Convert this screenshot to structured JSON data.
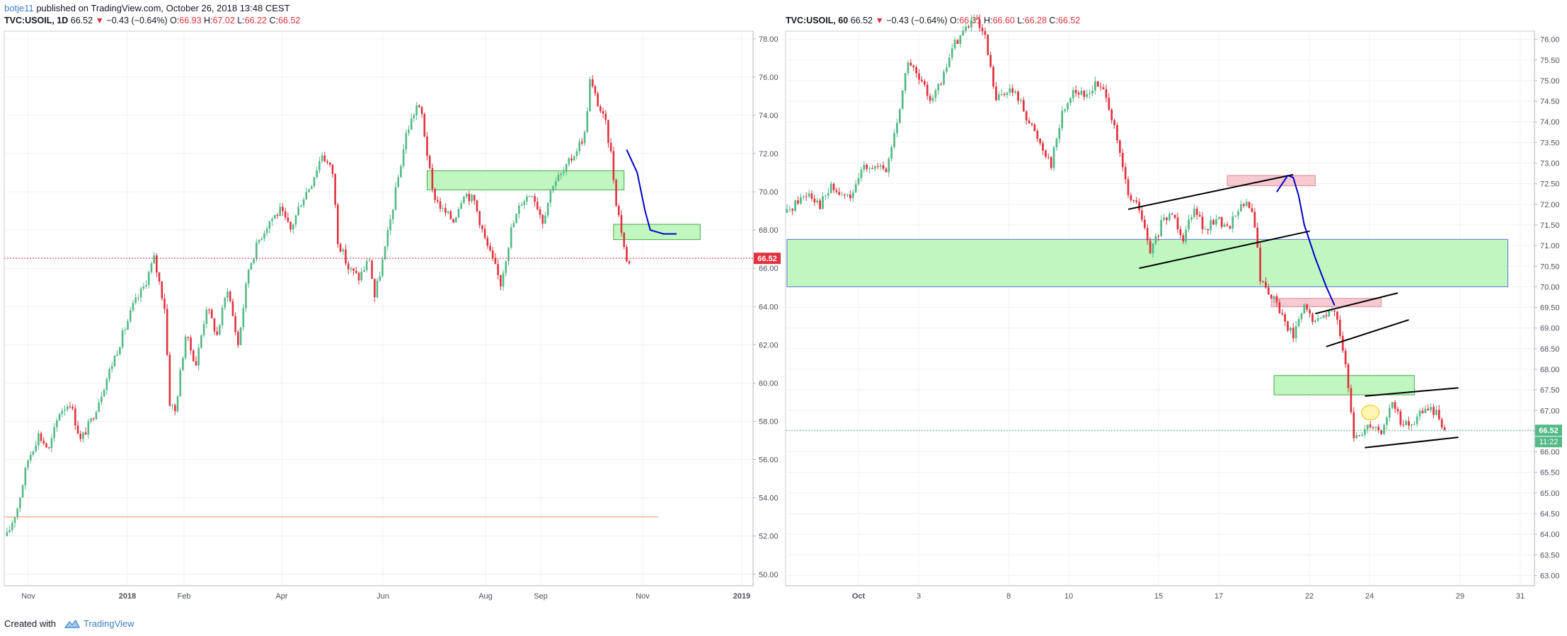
{
  "header": {
    "author": "botje11",
    "published_text": "published on TradingView.com, October 26, 2018 13:48 CEST"
  },
  "footer": {
    "created_with": "Created with",
    "brand": "TradingView"
  },
  "colors": {
    "up": "#26a69a",
    "up_candle": "#53b987",
    "down": "#e0323e",
    "zone_green": "#b9f5b9",
    "zone_pink": "#f6c3cb",
    "projection": "#0000cc",
    "grid": "#eef0f3",
    "price_label_left": "#e0323e",
    "price_label_right": "#53b987",
    "support_line": "#f5a070"
  },
  "chart_data": [
    {
      "type": "candlestick",
      "symbol": "TVC:USOIL",
      "interval": "1D",
      "legend": {
        "symbol": "TVC:USOIL, 1D",
        "last": "66.52",
        "change": "−0.43 (−0.64%)",
        "open_label": "O:",
        "open": "66.93",
        "high_label": "H:",
        "high": "67.02",
        "low_label": "L:",
        "low": "66.22",
        "close_label": "C:",
        "close": "66.52"
      },
      "y_ticks": [
        "50.00",
        "52.00",
        "54.00",
        "56.00",
        "58.00",
        "60.00",
        "62.00",
        "64.00",
        "66.00",
        "68.00",
        "70.00",
        "72.00",
        "74.00",
        "76.00",
        "78.00"
      ],
      "y_range": [
        49.4,
        78.4
      ],
      "x_ticks": [
        "Nov",
        "2018",
        "Feb",
        "Apr",
        "Jun",
        "Aug",
        "Sep",
        "Nov",
        "2019"
      ],
      "current_price_label": "66.52",
      "current_price": 66.52,
      "price_path": [
        [
          0,
          52.0
        ],
        [
          4,
          53.5
        ],
        [
          8,
          56.0
        ],
        [
          12,
          57.3
        ],
        [
          16,
          56.5
        ],
        [
          20,
          58.5
        ],
        [
          24,
          59.0
        ],
        [
          28,
          57.0
        ],
        [
          32,
          58.0
        ],
        [
          36,
          59.5
        ],
        [
          40,
          61.0
        ],
        [
          44,
          62.5
        ],
        [
          48,
          64.0
        ],
        [
          52,
          65.0
        ],
        [
          56,
          66.5
        ],
        [
          60,
          64.0
        ],
        [
          62,
          59.0
        ],
        [
          64,
          58.5
        ],
        [
          68,
          62.5
        ],
        [
          72,
          61.0
        ],
        [
          76,
          64.0
        ],
        [
          80,
          62.5
        ],
        [
          84,
          65.0
        ],
        [
          88,
          62.0
        ],
        [
          92,
          66.0
        ],
        [
          96,
          67.5
        ],
        [
          100,
          68.5
        ],
        [
          104,
          69.0
        ],
        [
          108,
          68.0
        ],
        [
          112,
          69.5
        ],
        [
          116,
          70.5
        ],
        [
          120,
          72.0
        ],
        [
          124,
          71.0
        ],
        [
          126,
          67.5
        ],
        [
          130,
          66.0
        ],
        [
          134,
          65.5
        ],
        [
          138,
          66.5
        ],
        [
          140,
          64.5
        ],
        [
          144,
          67.0
        ],
        [
          148,
          70.0
        ],
        [
          152,
          73.0
        ],
        [
          156,
          74.5
        ],
        [
          158,
          74.0
        ],
        [
          162,
          70.0
        ],
        [
          166,
          69.0
        ],
        [
          170,
          68.5
        ],
        [
          174,
          70.0
        ],
        [
          178,
          69.5
        ],
        [
          182,
          67.5
        ],
        [
          186,
          66.0
        ],
        [
          188,
          65.2
        ],
        [
          192,
          68.0
        ],
        [
          196,
          69.5
        ],
        [
          200,
          70.0
        ],
        [
          204,
          68.5
        ],
        [
          208,
          70.5
        ],
        [
          212,
          71.0
        ],
        [
          216,
          72.0
        ],
        [
          220,
          73.0
        ],
        [
          222,
          75.8
        ],
        [
          224,
          75.0
        ],
        [
          228,
          73.5
        ],
        [
          230,
          72.0
        ],
        [
          232,
          69.5
        ],
        [
          234,
          68.0
        ],
        [
          236,
          66.3
        ],
        [
          238,
          66.52
        ]
      ],
      "rectangles": [
        {
          "y_top": 71.1,
          "y_bottom": 70.1,
          "x_start_bar": 160,
          "x_end_bar": 235
        },
        {
          "y_top": 68.3,
          "y_bottom": 67.5,
          "x_start_bar": 231,
          "x_end_bar": 264
        }
      ],
      "horizontal_line": {
        "y": 53.0
      },
      "projection_path": [
        [
          236,
          72.2
        ],
        [
          240,
          71.0
        ],
        [
          243,
          69.0
        ],
        [
          245,
          68.0
        ],
        [
          250,
          67.8
        ],
        [
          255,
          67.8
        ]
      ]
    },
    {
      "type": "candlestick",
      "symbol": "TVC:USOIL",
      "interval": "60",
      "legend": {
        "symbol": "TVC:USOIL, 60",
        "last": "66.52",
        "change": "−0.43 (−0.64%)",
        "open_label": "O:",
        "open": "66.31",
        "high_label": "H:",
        "high": "66.60",
        "low_label": "L:",
        "low": "66.28",
        "close_label": "C:",
        "close": "66.52"
      },
      "y_ticks": [
        "63.00",
        "63.50",
        "64.00",
        "64.50",
        "65.00",
        "65.50",
        "66.00",
        "66.50",
        "67.00",
        "67.50",
        "68.00",
        "68.50",
        "69.00",
        "69.50",
        "70.00",
        "70.50",
        "71.00",
        "71.50",
        "72.00",
        "72.50",
        "73.00",
        "73.50",
        "74.00",
        "74.50",
        "75.00",
        "75.50",
        "76.00"
      ],
      "y_range": [
        62.75,
        76.2
      ],
      "x_ticks": [
        "Oct",
        "3",
        "8",
        "10",
        "15",
        "17",
        "22",
        "24",
        "29",
        "31"
      ],
      "current_price_label": "66.52",
      "countdown_label": "11:22",
      "current_price": 66.52,
      "price_path": [
        [
          0,
          71.8
        ],
        [
          4,
          72.1
        ],
        [
          8,
          72.3
        ],
        [
          12,
          72.0
        ],
        [
          16,
          72.4
        ],
        [
          20,
          72.2
        ],
        [
          24,
          72.2
        ],
        [
          28,
          73.0
        ],
        [
          32,
          72.9
        ],
        [
          36,
          72.8
        ],
        [
          40,
          74.0
        ],
        [
          44,
          75.5
        ],
        [
          48,
          75.0
        ],
        [
          52,
          74.6
        ],
        [
          56,
          74.9
        ],
        [
          60,
          75.8
        ],
        [
          64,
          76.2
        ],
        [
          68,
          76.5
        ],
        [
          72,
          76.0
        ],
        [
          76,
          74.5
        ],
        [
          80,
          74.8
        ],
        [
          84,
          74.6
        ],
        [
          88,
          74.0
        ],
        [
          92,
          73.5
        ],
        [
          96,
          73.0
        ],
        [
          100,
          74.2
        ],
        [
          104,
          74.8
        ],
        [
          108,
          74.6
        ],
        [
          112,
          74.9
        ],
        [
          116,
          74.7
        ],
        [
          120,
          73.5
        ],
        [
          124,
          72.2
        ],
        [
          128,
          71.9
        ],
        [
          132,
          70.8
        ],
        [
          136,
          71.5
        ],
        [
          140,
          71.8
        ],
        [
          144,
          71.2
        ],
        [
          148,
          72.0
        ],
        [
          152,
          71.3
        ],
        [
          156,
          71.7
        ],
        [
          160,
          71.4
        ],
        [
          164,
          71.9
        ],
        [
          168,
          72.0
        ],
        [
          170,
          71.5
        ],
        [
          172,
          70.2
        ],
        [
          176,
          69.8
        ],
        [
          180,
          69.3
        ],
        [
          184,
          68.8
        ],
        [
          188,
          69.5
        ],
        [
          192,
          69.1
        ],
        [
          196,
          69.4
        ],
        [
          200,
          69.3
        ],
        [
          202,
          68.5
        ],
        [
          204,
          67.5
        ],
        [
          206,
          66.3
        ],
        [
          208,
          66.4
        ],
        [
          212,
          66.7
        ],
        [
          216,
          66.5
        ],
        [
          220,
          67.2
        ],
        [
          224,
          66.6
        ],
        [
          228,
          66.7
        ],
        [
          232,
          67.1
        ],
        [
          236,
          66.9
        ],
        [
          240,
          66.52
        ]
      ],
      "rectangles": [
        {
          "y_top": 71.15,
          "y_bottom": 70.0,
          "x_start_bar": 0,
          "x_end_bar": 262,
          "stroke": "#5e78d6",
          "fill_key": "zone_green"
        },
        {
          "y_top": 72.7,
          "y_bottom": 72.45,
          "x_start_bar": 160,
          "x_end_bar": 192,
          "fill_key": "zone_pink"
        },
        {
          "y_top": 69.72,
          "y_bottom": 69.52,
          "x_start_bar": 176,
          "x_end_bar": 216,
          "fill_key": "zone_pink"
        },
        {
          "y_top": 67.85,
          "y_bottom": 67.38,
          "x_start_bar": 177,
          "x_end_bar": 228,
          "fill_key": "zone_green"
        }
      ],
      "trend_lines": [
        [
          [
            124,
            71.88
          ],
          [
            184,
            72.72
          ]
        ],
        [
          [
            128,
            70.45
          ],
          [
            190,
            71.35
          ]
        ],
        [
          [
            192,
            69.35
          ],
          [
            222,
            69.85
          ]
        ],
        [
          [
            196,
            68.55
          ],
          [
            226,
            69.2
          ]
        ],
        [
          [
            210,
            67.35
          ],
          [
            244,
            67.55
          ]
        ],
        [
          [
            210,
            66.1
          ],
          [
            244,
            66.35
          ]
        ]
      ],
      "projection_path": [
        [
          178,
          72.3
        ],
        [
          182,
          72.7
        ],
        [
          184,
          72.65
        ],
        [
          186,
          72.2
        ],
        [
          188,
          71.5
        ],
        [
          192,
          70.7
        ],
        [
          196,
          70.0
        ],
        [
          199,
          69.55
        ]
      ],
      "ellipse": {
        "cx_bar": 212,
        "cy": 66.95,
        "rx_bars": 3.2,
        "ry": 0.18
      }
    }
  ]
}
